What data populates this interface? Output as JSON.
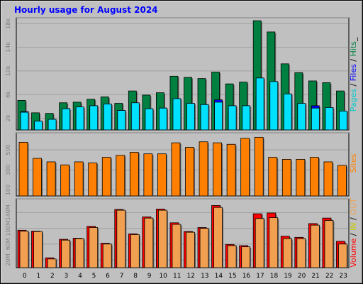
{
  "title": "Hourly usage for August 2024",
  "colors": {
    "hits": "#008040",
    "files": "#0000ff",
    "pages": "#00e0ff",
    "visits": "#ff8000",
    "sites": "#ff8000",
    "kbytes": "#ff0000",
    "kbytes_in": "#ffff00",
    "kbytes_out": "#f0a050",
    "grid": "#a0a0a0",
    "panel": "#c0c0c0"
  },
  "side_labels": {
    "top": [
      {
        "text": "Pages",
        "color": "#00c8c8"
      },
      {
        "text": " / ",
        "color": "#000000"
      },
      {
        "text": "Files",
        "color": "#0000ff"
      },
      {
        "text": " / ",
        "color": "#000000"
      },
      {
        "text": "Hits",
        "color": "#008040"
      },
      {
        "text": "_",
        "color": "#000000"
      }
    ],
    "middle": [
      {
        "text": "Sites",
        "color": "#ff8000"
      }
    ],
    "bottom": [
      {
        "text": "Volume",
        "color": "#ff0000"
      },
      {
        "text": " / ",
        "color": "#000000"
      },
      {
        "text": "IN",
        "color": "#c8c800"
      },
      {
        "text": " / ",
        "color": "#000000"
      },
      {
        "text": "OUT",
        "color": "#f0a050"
      }
    ]
  },
  "chart_data": [
    {
      "type": "bar",
      "name": "pages-files-hits",
      "categories": [
        "0",
        "1",
        "2",
        "3",
        "4",
        "5",
        "6",
        "7",
        "8",
        "9",
        "10",
        "11",
        "12",
        "13",
        "14",
        "15",
        "16",
        "17",
        "18",
        "19",
        "20",
        "21",
        "22",
        "23"
      ],
      "ylim": [
        0,
        19000
      ],
      "yticks": [
        "2k",
        "6k",
        "10k",
        "14k",
        "18k"
      ],
      "ytick_values": [
        2000,
        6000,
        10000,
        14000,
        18000
      ],
      "series": [
        {
          "key": "hits",
          "values": [
            5000,
            2900,
            2800,
            4600,
            4700,
            5200,
            5600,
            4500,
            6600,
            5900,
            6300,
            9100,
            8900,
            8700,
            9800,
            7800,
            8100,
            18500,
            16600,
            11200,
            9700,
            8300,
            8000,
            6600
          ]
        },
        {
          "key": "files",
          "values": [
            3100,
            1500,
            1700,
            3600,
            3800,
            4000,
            4300,
            3300,
            4300,
            3200,
            3700,
            5200,
            4200,
            4300,
            5100,
            3700,
            4000,
            5500,
            6200,
            4900,
            4400,
            4100,
            3700,
            3200
          ]
        },
        {
          "key": "pages",
          "values": [
            3000,
            1500,
            1800,
            3600,
            3900,
            4100,
            4400,
            3300,
            4600,
            3600,
            3700,
            5300,
            4500,
            4300,
            4700,
            4100,
            4100,
            8800,
            8200,
            6100,
            4500,
            3700,
            3800,
            3200
          ]
        }
      ]
    },
    {
      "type": "bar",
      "name": "sites",
      "categories": [
        "0",
        "1",
        "2",
        "3",
        "4",
        "5",
        "6",
        "7",
        "8",
        "9",
        "10",
        "11",
        "12",
        "13",
        "14",
        "15",
        "16",
        "17",
        "18",
        "19",
        "20",
        "21",
        "22",
        "23"
      ],
      "ylim": [
        40,
        670
      ],
      "yticks": [
        "100",
        "300",
        "500"
      ],
      "ytick_values": [
        100,
        300,
        500
      ],
      "series": [
        {
          "key": "sites",
          "values": [
            575,
            415,
            380,
            350,
            380,
            370,
            425,
            445,
            475,
            460,
            460,
            570,
            525,
            580,
            570,
            555,
            615,
            625,
            425,
            405,
            405,
            425,
            380,
            345
          ]
        }
      ]
    },
    {
      "type": "bar",
      "name": "volume-in-out",
      "categories": [
        "0",
        "1",
        "2",
        "3",
        "4",
        "5",
        "6",
        "7",
        "8",
        "9",
        "10",
        "11",
        "12",
        "13",
        "14",
        "15",
        "16",
        "17",
        "18",
        "19",
        "20",
        "21",
        "22",
        "23"
      ],
      "ylim": [
        0,
        175
      ],
      "yticks": [
        "20M",
        "60M",
        "100M",
        "140M"
      ],
      "ytick_values": [
        20,
        60,
        100,
        140
      ],
      "series": [
        {
          "key": "kbytes",
          "values": [
            95,
            93,
            25,
            72,
            75,
            105,
            62,
            148,
            86,
            129,
            149,
            114,
            92,
            102,
            158,
            59,
            56,
            137,
            139,
            80,
            77,
            112,
            126,
            67
          ]
        },
        {
          "key": "kbytes_in",
          "values": [
            0.5,
            0.5,
            0.3,
            0.4,
            0.4,
            0.5,
            0.3,
            0.6,
            0.4,
            0.5,
            0.6,
            0.5,
            0.4,
            0.5,
            0.6,
            0.3,
            0.3,
            0.5,
            0.5,
            0.4,
            0.4,
            0.5,
            0.5,
            0.3
          ]
        },
        {
          "key": "kbytes_out",
          "values": [
            93,
            92,
            22,
            70,
            74,
            102,
            60,
            146,
            84,
            126,
            146,
            110,
            90,
            100,
            153,
            56,
            53,
            125,
            127,
            74,
            74,
            108,
            120,
            60
          ]
        }
      ]
    }
  ]
}
